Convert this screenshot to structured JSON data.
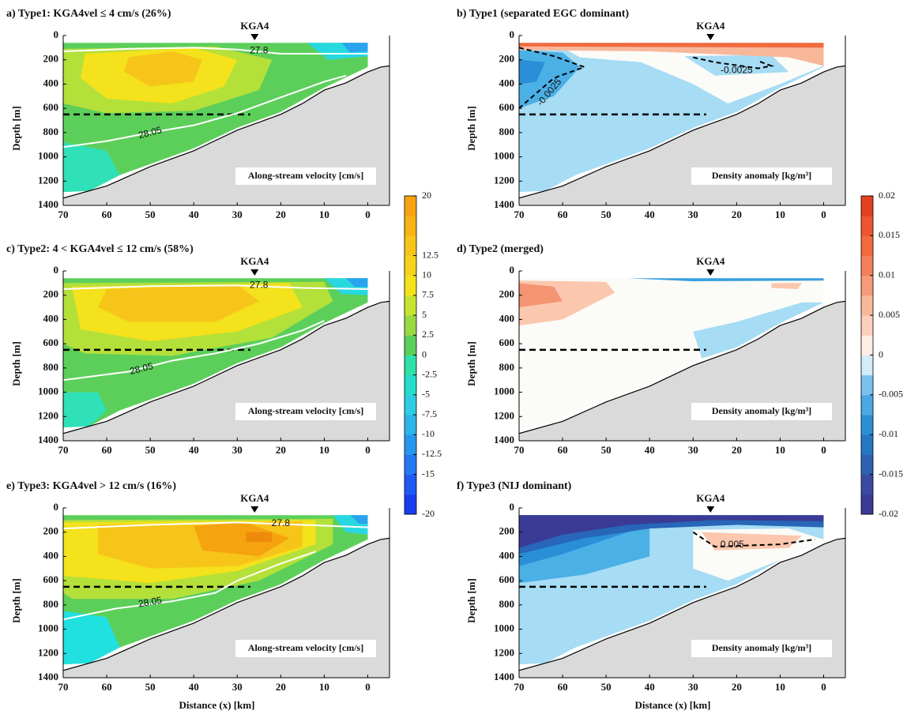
{
  "chart_data": [
    {
      "type": "contour",
      "title": "a) Type1: KGA4vel ≤ 4 cm/s  (26%)",
      "ylabel": "Depth [m]",
      "xlim": [
        70,
        -5
      ],
      "xticks": [
        70,
        60,
        50,
        40,
        30,
        20,
        10,
        0
      ],
      "ylim": [
        0,
        1400
      ],
      "y_inverted": true,
      "yticks": [
        0,
        200,
        400,
        600,
        800,
        1000,
        1200,
        1400
      ],
      "marker": "KGA4",
      "marker_x": 26,
      "reference_depth": 650,
      "annotation": "Along-stream velocity [cm/s]",
      "contour_labels": [
        27.8,
        28.05
      ]
    },
    {
      "type": "contour",
      "title": "b) Type1 (separated EGC dominant)",
      "ylabel": "Depth [m]",
      "xlim": [
        70,
        -5
      ],
      "xticks": [
        70,
        60,
        50,
        40,
        30,
        20,
        10,
        0
      ],
      "ylim": [
        0,
        1400
      ],
      "y_inverted": true,
      "yticks": [
        0,
        200,
        400,
        600,
        800,
        1000,
        1200,
        1400
      ],
      "marker": "KGA4",
      "marker_x": 26,
      "reference_depth": 650,
      "annotation": "Density anomaly [kg/m³]",
      "contour_labels": [
        -0.0025,
        -0.0025
      ]
    },
    {
      "type": "contour",
      "title": "c) Type2: 4 < KGA4vel ≤ 12 cm/s  (58%)",
      "ylabel": "Depth [m]",
      "xlim": [
        70,
        -5
      ],
      "xticks": [
        70,
        60,
        50,
        40,
        30,
        20,
        10,
        0
      ],
      "ylim": [
        0,
        1400
      ],
      "y_inverted": true,
      "yticks": [
        0,
        200,
        400,
        600,
        800,
        1000,
        1200,
        1400
      ],
      "marker": "KGA4",
      "marker_x": 26,
      "reference_depth": 650,
      "annotation": "Along-stream velocity [cm/s]",
      "contour_labels": [
        27.8,
        28.05
      ]
    },
    {
      "type": "contour",
      "title": "d) Type2 (merged)",
      "ylabel": "Depth [m]",
      "xlim": [
        70,
        -5
      ],
      "xticks": [
        70,
        60,
        50,
        40,
        30,
        20,
        10,
        0
      ],
      "ylim": [
        0,
        1400
      ],
      "y_inverted": true,
      "yticks": [
        0,
        200,
        400,
        600,
        800,
        1000,
        1200,
        1400
      ],
      "marker": "KGA4",
      "marker_x": 26,
      "reference_depth": 650,
      "annotation": "Density anomaly [kg/m³]"
    },
    {
      "type": "contour",
      "title": "e) Type3: KGA4vel > 12 cm/s  (16%)",
      "ylabel": "Depth [m]",
      "xlabel": "Distance (x) [km]",
      "xlim": [
        70,
        -5
      ],
      "xticks": [
        70,
        60,
        50,
        40,
        30,
        20,
        10,
        0
      ],
      "ylim": [
        0,
        1400
      ],
      "y_inverted": true,
      "yticks": [
        0,
        200,
        400,
        600,
        800,
        1000,
        1200,
        1400
      ],
      "marker": "KGA4",
      "marker_x": 26,
      "reference_depth": 650,
      "annotation": "Along-stream velocity [cm/s]",
      "contour_labels": [
        27.8,
        28.05
      ]
    },
    {
      "type": "contour",
      "title": "f) Type3 (NIJ dominant)",
      "ylabel": "Depth [m]",
      "xlabel": "Distance (x) [km]",
      "xlim": [
        70,
        -5
      ],
      "xticks": [
        70,
        60,
        50,
        40,
        30,
        20,
        10,
        0
      ],
      "ylim": [
        0,
        1400
      ],
      "y_inverted": true,
      "yticks": [
        0,
        200,
        400,
        600,
        800,
        1000,
        1200,
        1400
      ],
      "marker": "KGA4",
      "marker_x": 26,
      "reference_depth": 650,
      "annotation": "Density anomaly [kg/m³]",
      "contour_labels": [
        0.005
      ]
    }
  ],
  "colorbars": [
    {
      "lim": [
        -20,
        20
      ],
      "ticks": [
        20,
        12.5,
        10,
        7.5,
        5,
        2.5,
        0,
        -2.5,
        -5,
        -7.5,
        -10,
        -12.5,
        -15,
        -20
      ]
    },
    {
      "lim": [
        -0.02,
        0.02
      ],
      "ticks": [
        0.02,
        0.015,
        0.01,
        0.005,
        0,
        -0.005,
        -0.01,
        -0.015,
        -0.02
      ]
    }
  ]
}
